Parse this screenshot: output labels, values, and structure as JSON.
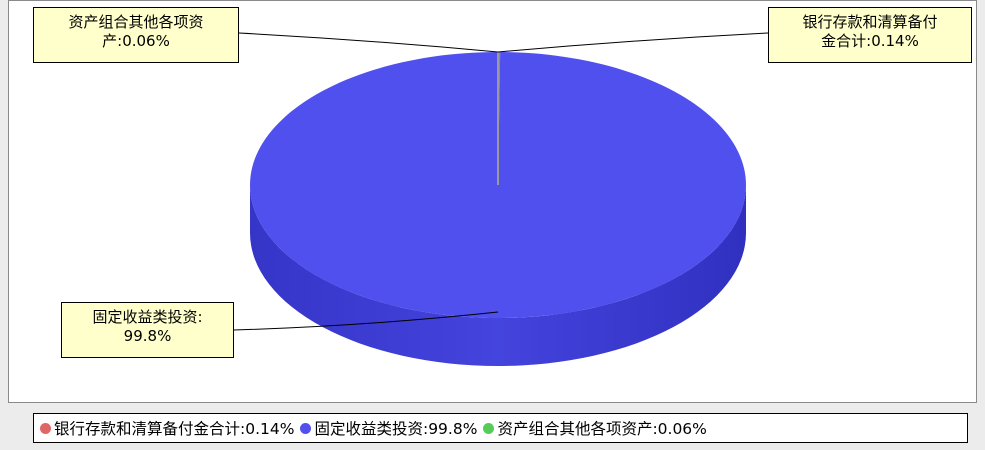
{
  "chart_data": {
    "type": "pie",
    "slices": [
      {
        "label": "银行存款和清算备付金合计",
        "value": 0.14,
        "value_text": "0.14%",
        "color": "#e06666",
        "callout": [
          "银行存款和清算备付",
          "金合计:0.14%"
        ]
      },
      {
        "label": "固定收益类投资",
        "value": 99.8,
        "value_text": "99.8%",
        "color": "#5050ee",
        "callout": [
          "固定收益类投资:",
          "99.8%"
        ]
      },
      {
        "label": "资产组合其他各项资产",
        "value": 0.06,
        "value_text": "0.06%",
        "color": "#55cc55",
        "callout": [
          "资产组合其他各项资",
          "产:0.06%"
        ]
      }
    ],
    "legend": [
      {
        "text": "银行存款和清算备付金合计:0.14%",
        "color": "#e06666"
      },
      {
        "text": "固定收益类投资:99.8%",
        "color": "#5050ee"
      },
      {
        "text": "资产组合其他各项资产:0.06%",
        "color": "#55cc55"
      }
    ],
    "legend_position": "bottom",
    "style": "3d"
  }
}
